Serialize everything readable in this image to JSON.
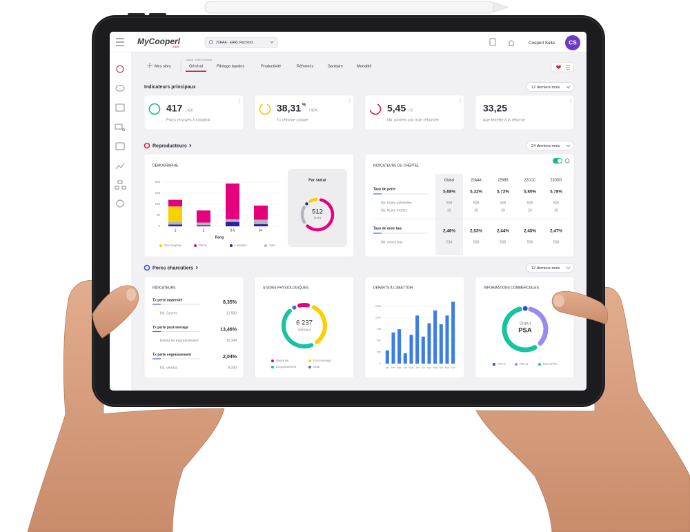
{
  "topbar": {
    "logo": "MyCooperl",
    "logo_suffix": "Suite",
    "site": "22AAA - EARL Rochord..",
    "user": "Cooperl Suite",
    "avatar": "CS"
  },
  "nav": {
    "sites": "Mes sites",
    "breadcrumb": "22AAA - EARL Rochord",
    "tabs": [
      "Général",
      "Pilotage bandes",
      "Productivité",
      "Réformes",
      "Sanitaire",
      "Mortalité"
    ]
  },
  "main_indicators": {
    "title": "Indicateurs principaux",
    "period": "12 derniers mois",
    "cards": [
      {
        "value": "417",
        "target": "/ 420",
        "label": "Porcs envoyés à l'abattoir",
        "ring_color": "#17b890"
      },
      {
        "value": "38,31",
        "unit": "%",
        "target": "/ 45%",
        "label": "Tx réforme annuel",
        "ring_color": "#f5c400"
      },
      {
        "value": "5,45",
        "target": "/ 8",
        "label": "Nb. portées par truie réformée",
        "ring_color": "#e0203c"
      },
      {
        "value": "33,25",
        "label": "Age femelle à la réforme"
      }
    ]
  },
  "breeders": {
    "title": "Reproducteurs",
    "period": "24 derniers mois",
    "demography": {
      "title": "DÉMOGRAPHIE",
      "x_label": "Rang",
      "categories": [
        "1",
        "2",
        "3-5",
        "6+"
      ],
      "ylim": [
        0,
        200
      ],
      "yticks": [
        0,
        50,
        100,
        150,
        200
      ],
      "series": [
        {
          "name": "Pré-troupeau",
          "color": "#f7d100",
          "values": [
            70,
            0,
            0,
            0
          ]
        },
        {
          "name": "Pleine",
          "color": "#e5007d",
          "values": [
            30,
            55,
            162,
            64
          ]
        },
        {
          "name": "Lactation",
          "color": "#2d1fa8",
          "values": [
            8,
            5,
            20,
            10
          ]
        },
        {
          "name": "Vide",
          "color": "#b4b4be",
          "values": [
            12,
            12,
            12,
            20
          ]
        }
      ]
    },
    "status": {
      "title": "Par statut",
      "total": "512",
      "unit": "truies",
      "values": [
        60,
        320,
        22,
        110
      ]
    },
    "herd": {
      "title": "INDICATEURS DU CHEPTEL",
      "columns": [
        "Global",
        "22AAA",
        "22BBB",
        "22CCC",
        "22DDD"
      ],
      "groups": [
        {
          "label": "Taux de perte",
          "values": [
            "5,68%",
            "5,32%",
            "5,72%",
            "5,80%",
            "5,78%"
          ],
          "details": [
            {
              "label": "Nb. truies présentes",
              "values": [
                "508",
                "508",
                "508",
                "508",
                "508"
              ]
            },
            {
              "label": "Nb. truies mortes",
              "values": [
                "29",
                "29",
                "29",
                "29",
                "29"
              ]
            }
          ]
        },
        {
          "label": "Taux de mise bas",
          "values": [
            "2,46%",
            "2,53%",
            "2,44%",
            "2,45%",
            "2,47%"
          ],
          "details": [
            {
              "label": "Nb. mises bas",
              "values": [
                "634",
                "508",
                "508",
                "508",
                "508"
              ]
            }
          ]
        }
      ]
    }
  },
  "pigs": {
    "title": "Porcs charcutiers",
    "period": "12 derniers mois",
    "indicators": {
      "title": "INDICATEURS",
      "groups": [
        {
          "label": "Tx perte maternité",
          "value": "8,35%",
          "detail": {
            "label": "Nb. Sevrés",
            "value": "12 580"
          }
        },
        {
          "label": "Tx perte post-sevrage",
          "value": "13,46%",
          "detail": {
            "label": "Entrés en engraissement",
            "value": "10 344"
          }
        },
        {
          "label": "Tx perte engraissement",
          "value": "2,04%",
          "detail": {
            "label": "Nb. vendus",
            "value": "8 340"
          }
        }
      ]
    },
    "stages": {
      "title": "STADES PHYSIOLOGIQUES",
      "total": "6 237",
      "unit": "animaux",
      "segments": [
        {
          "name": "Maternité",
          "color": "#e5007d",
          "value": 700
        },
        {
          "name": "Post-sevrage",
          "color": "#f7d100",
          "value": 2300
        },
        {
          "name": "Engraissement",
          "color": "#17c3a0",
          "value": 3000
        },
        {
          "name": "Quai",
          "color": "#3a6fe0",
          "value": 237
        }
      ]
    },
    "departures": {
      "title": "DÉPARTS À L'ABATTOIR",
      "color": "#3b7de6",
      "categories": [
        "Jan",
        "Fév",
        "Mar",
        "Avr",
        "Mai",
        "Jun",
        "Jul",
        "Aoû",
        "Sep",
        "Oct",
        "Nov",
        "Déc"
      ],
      "values": [
        290,
        680,
        750,
        225,
        630,
        1050,
        590,
        880,
        1160,
        860,
        1050,
        1350
      ],
      "ylim": [
        0,
        1400
      ],
      "yticks": [
        0,
        250,
        500,
        750,
        1000,
        1250
      ]
    },
    "commercial": {
      "title": "INFORMATIONS COMMERCIALES",
      "center_label": "Statut",
      "center_value": "PSA",
      "segments": [
        {
          "name": "PSA 1",
          "color": "#2b4fd6",
          "value": 3
        },
        {
          "name": "PSA 2",
          "color": "#9a8af0",
          "value": 38
        },
        {
          "name": "Excel PSA",
          "color": "#17c3a0",
          "value": 59
        }
      ]
    }
  }
}
